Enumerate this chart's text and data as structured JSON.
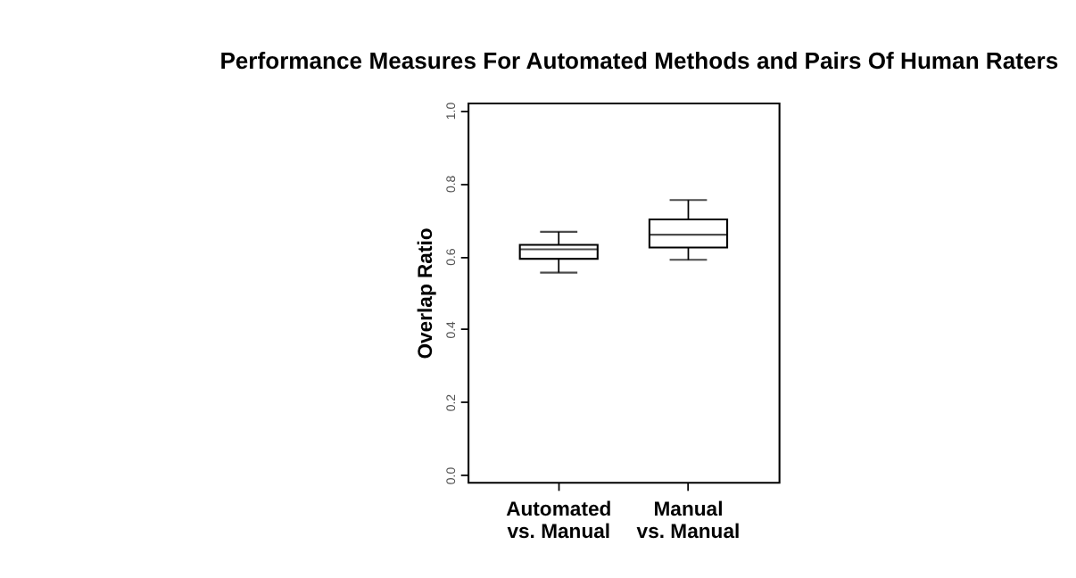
{
  "chart_data": {
    "type": "box",
    "title": "Performance Measures For Automated Methods and Pairs Of Human Raters",
    "ylabel": "Overlap Ratio",
    "categories": [
      "Automated\nvs. Manual",
      "Manual\nvs. Manual"
    ],
    "boxes": [
      {
        "low": 0.555,
        "q1": 0.593,
        "median": 0.619,
        "q3": 0.631,
        "high": 0.667
      },
      {
        "low": 0.59,
        "q1": 0.624,
        "median": 0.659,
        "q3": 0.701,
        "high": 0.754
      }
    ],
    "color": "#000000",
    "ylim": [
      -0.02,
      1.02
    ],
    "yticks": [
      {
        "value": 0,
        "label": "0.0"
      },
      0.2,
      0.4,
      0.6,
      0.8,
      {
        "value": 1,
        "label": "1.0"
      }
    ],
    "grid": false
  }
}
